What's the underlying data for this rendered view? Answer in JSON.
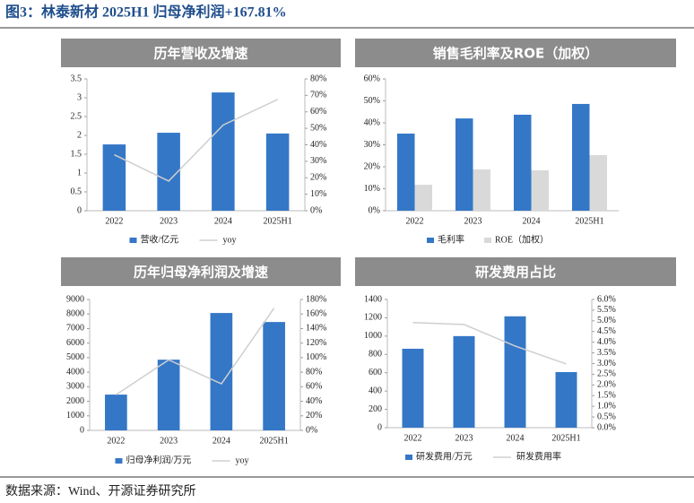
{
  "title": "图3：林泰新材 2025H1 归母净利润+167.81%",
  "source": "数据来源：Wind、开源证券研究所",
  "chart_data": [
    {
      "type": "bar",
      "title": "历年营收及增速",
      "categories": [
        "2022",
        "2023",
        "2024",
        "2025H1"
      ],
      "series": [
        {
          "name": "营收/亿元",
          "type": "bar",
          "color": "#3477c7",
          "values": [
            1.76,
            2.07,
            3.14,
            2.05
          ]
        },
        {
          "name": "yoy",
          "type": "line",
          "axis": "y2",
          "color": "#cfcfcf",
          "values": [
            34,
            18,
            52,
            67.5
          ]
        }
      ],
      "ylim": [
        0,
        3.5
      ],
      "yticks": [
        0,
        0.5,
        1,
        1.5,
        2,
        2.5,
        3,
        3.5
      ],
      "y2lim": [
        0,
        80
      ],
      "y2ticks": [
        {
          "value": 0,
          "label": "0%"
        },
        {
          "value": 10,
          "label": "10%"
        },
        {
          "value": 20,
          "label": "20%"
        },
        {
          "value": 30,
          "label": "30%"
        },
        {
          "value": 40,
          "label": "40%"
        },
        {
          "value": 50,
          "label": "50%"
        },
        {
          "value": 60,
          "label": "60%"
        },
        {
          "value": 70,
          "label": "70%"
        },
        {
          "value": 80,
          "label": "80%"
        }
      ]
    },
    {
      "type": "bar",
      "title": "销售毛利率及ROE（加权）",
      "categories": [
        "2022",
        "2023",
        "2024",
        "2025H1"
      ],
      "series": [
        {
          "name": "毛利率",
          "type": "bar",
          "color": "#3477c7",
          "values": [
            35.1,
            42,
            43.7,
            48.6
          ]
        },
        {
          "name": "ROE（加权）",
          "type": "bar",
          "color": "#d9d9d9",
          "values": [
            11.8,
            18.8,
            18.4,
            25.3
          ]
        }
      ],
      "ylim": [
        0,
        60
      ],
      "yticks": [
        {
          "value": 0,
          "label": "0%"
        },
        {
          "value": 10,
          "label": "10%"
        },
        {
          "value": 20,
          "label": "20%"
        },
        {
          "value": 30,
          "label": "30%"
        },
        {
          "value": 40,
          "label": "40%"
        },
        {
          "value": 50,
          "label": "50%"
        },
        {
          "value": 60,
          "label": "60%"
        }
      ]
    },
    {
      "type": "bar",
      "title": "历年归母净利润及增速",
      "categories": [
        "2022",
        "2023",
        "2024",
        "2025H1"
      ],
      "series": [
        {
          "name": "归母净利润/万元",
          "type": "bar",
          "color": "#3477c7",
          "values": [
            2460,
            4860,
            8070,
            7450
          ]
        },
        {
          "name": "yoy",
          "type": "line",
          "axis": "y2",
          "color": "#cfcfcf",
          "values": [
            49,
            97,
            64,
            168
          ]
        }
      ],
      "ylim": [
        0,
        9000
      ],
      "yticks": [
        0,
        1000,
        2000,
        3000,
        4000,
        5000,
        6000,
        7000,
        8000,
        9000
      ],
      "y2lim": [
        0,
        180
      ],
      "y2ticks": [
        {
          "value": 0,
          "label": "0%"
        },
        {
          "value": 20,
          "label": "20%"
        },
        {
          "value": 40,
          "label": "40%"
        },
        {
          "value": 60,
          "label": "60%"
        },
        {
          "value": 80,
          "label": "80%"
        },
        {
          "value": 100,
          "label": "100%"
        },
        {
          "value": 120,
          "label": "120%"
        },
        {
          "value": 140,
          "label": "140%"
        },
        {
          "value": 160,
          "label": "160%"
        },
        {
          "value": 180,
          "label": "180%"
        }
      ]
    },
    {
      "type": "bar",
      "title": "研发费用占比",
      "categories": [
        "2022",
        "2023",
        "2024",
        "2025H1"
      ],
      "series": [
        {
          "name": "研发费用/万元",
          "type": "bar",
          "color": "#3477c7",
          "values": [
            862,
            1000,
            1216,
            607
          ]
        },
        {
          "name": "研发费用率",
          "type": "line",
          "axis": "y2",
          "color": "#cfcfcf",
          "values": [
            4.92,
            4.83,
            3.82,
            2.98
          ]
        }
      ],
      "ylim": [
        0,
        1400
      ],
      "yticks": [
        0,
        200,
        400,
        600,
        800,
        1000,
        1200,
        1400
      ],
      "y2lim": [
        0,
        6
      ],
      "y2ticks": [
        {
          "value": 0,
          "label": "0.0%"
        },
        {
          "value": 0.5,
          "label": "0.5%"
        },
        {
          "value": 1,
          "label": "1.0%"
        },
        {
          "value": 1.5,
          "label": "1.5%"
        },
        {
          "value": 2,
          "label": "2.0%"
        },
        {
          "value": 2.5,
          "label": "2.5%"
        },
        {
          "value": 3,
          "label": "3.0%"
        },
        {
          "value": 3.5,
          "label": "3.5%"
        },
        {
          "value": 4,
          "label": "4.0%"
        },
        {
          "value": 4.5,
          "label": "4.5%"
        },
        {
          "value": 5,
          "label": "5.0%"
        },
        {
          "value": 5.5,
          "label": "5.5%"
        },
        {
          "value": 6,
          "label": "6.0%"
        }
      ]
    }
  ]
}
